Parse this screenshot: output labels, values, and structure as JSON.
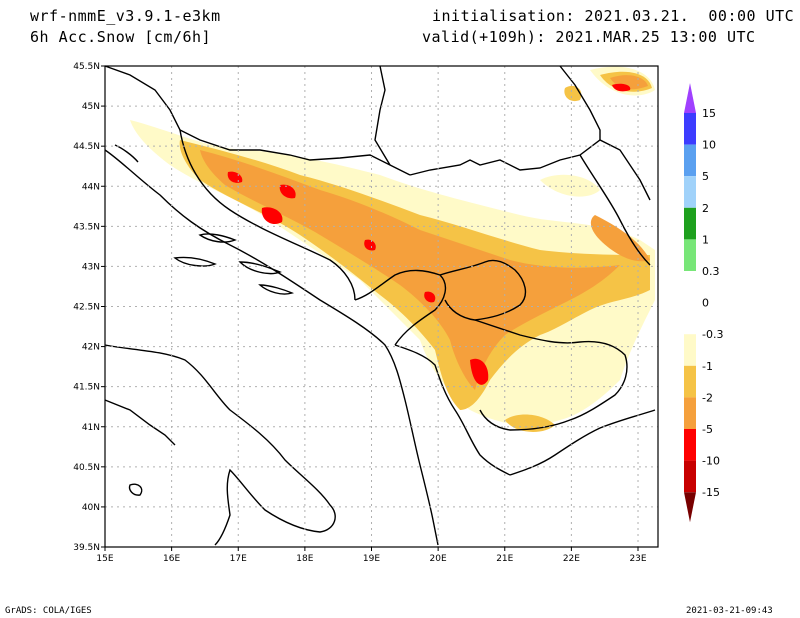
{
  "header": {
    "model": "wrf-nmmE_v3.9.1-e3km",
    "variable": "6h Acc.Snow [cm/6h]",
    "init": "initialisation: 2021.03.21.  00:00 UTC",
    "valid": "valid(+109h): 2021.MAR.25 13:00 UTC"
  },
  "footer": {
    "left": "GrADS: COLA/IGES",
    "right": "2021-03-21-09:43"
  },
  "map": {
    "lon_labels": [
      "15E",
      "16E",
      "17E",
      "18E",
      "19E",
      "20E",
      "21E",
      "22E",
      "23E"
    ],
    "lat_labels": [
      "45.5N",
      "45N",
      "44.5N",
      "44N",
      "43.5N",
      "43N",
      "42.5N",
      "42N",
      "41.5N",
      "41N",
      "40.5N",
      "40N",
      "39.5N"
    ],
    "lon_range": [
      15,
      23.3
    ],
    "lat_range": [
      39.5,
      45.5
    ]
  },
  "colorbar": {
    "labels": [
      "15",
      "10",
      "5",
      "2",
      "1",
      "0.3",
      "0",
      "-0.3",
      "-1",
      "-2",
      "-5",
      "-10",
      "-15"
    ],
    "colors": [
      "#3c3cff",
      "#5aa0f0",
      "#a0d2fa",
      "#1ea01e",
      "#78e678",
      "#ffffff",
      "#ffffff",
      "#fffac8",
      "#f5c346",
      "#f5a03c",
      "#ff0000",
      "#c80000",
      "#a00000"
    ],
    "top_arrow_color": "#a040ff",
    "bottom_arrow_color": "#780000"
  }
}
